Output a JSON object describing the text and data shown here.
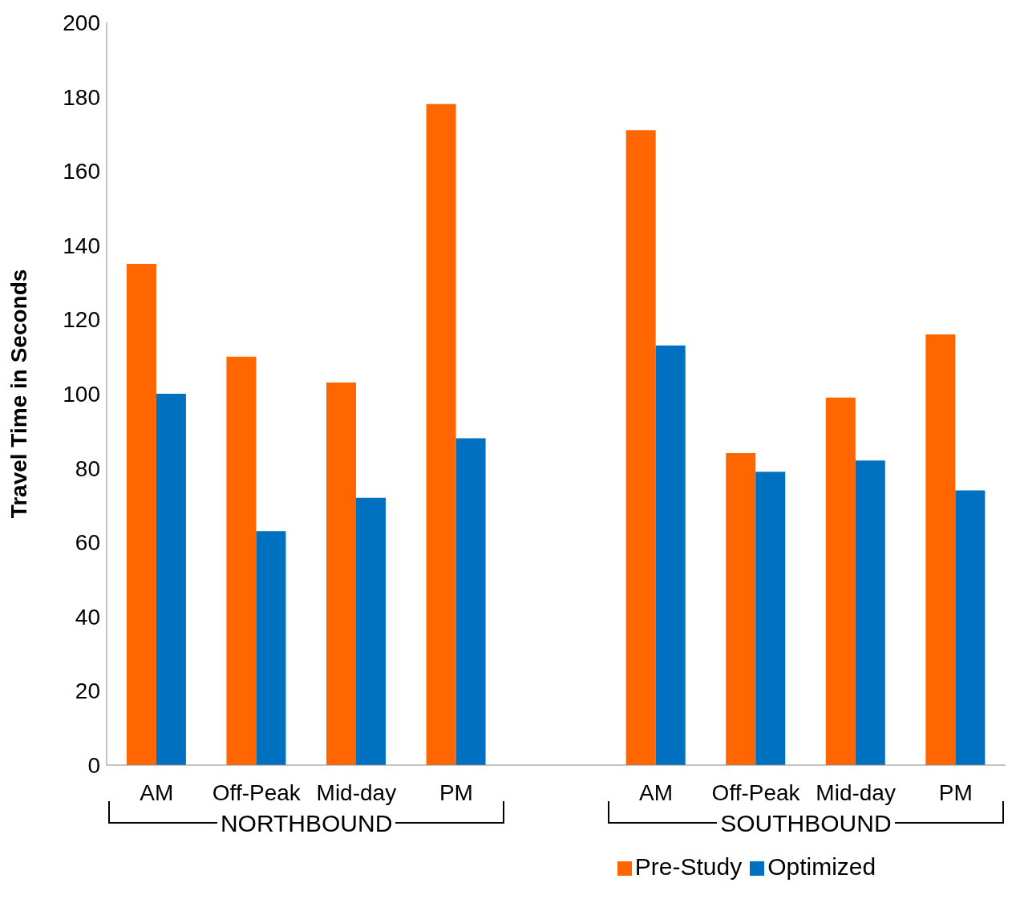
{
  "chart_data": {
    "type": "bar",
    "ylabel": "Travel Time in Seconds",
    "categories": [
      "AM",
      "Off-Peak",
      "Mid-day",
      "PM",
      null,
      "AM",
      "Off-Peak",
      "Mid-day",
      "PM"
    ],
    "series": [
      {
        "name": "Pre-Study",
        "color": "#ff6600",
        "values": [
          135,
          110,
          103,
          178,
          null,
          171,
          84,
          99,
          116
        ]
      },
      {
        "name": "Optimized",
        "color": "#0070c0",
        "values": [
          100,
          63,
          72,
          88,
          null,
          113,
          79,
          82,
          74
        ]
      }
    ],
    "ylim": [
      0,
      200
    ],
    "yticks": [
      0,
      20,
      40,
      60,
      80,
      100,
      120,
      140,
      160,
      180,
      200
    ],
    "grid": false,
    "legend": "bottom",
    "annotations": [
      "NORTHBOUND",
      "SOUTHBOUND"
    ]
  }
}
